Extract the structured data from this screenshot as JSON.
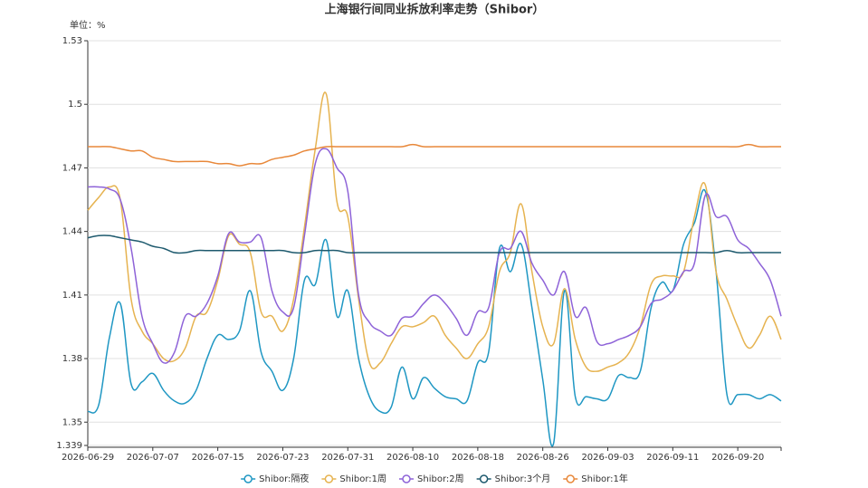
{
  "chart_data": {
    "type": "line",
    "title": "上海银行间同业拆放利率走势（Shibor）",
    "unit_label": "单位：%",
    "categories": [
      "2026-06-29",
      null,
      null,
      null,
      null,
      null,
      "2026-07-07",
      null,
      null,
      null,
      null,
      null,
      "2026-07-15",
      null,
      null,
      null,
      null,
      null,
      "2026-07-23",
      null,
      null,
      null,
      null,
      null,
      "2026-07-31",
      null,
      null,
      null,
      null,
      null,
      "2026-08-10",
      null,
      null,
      null,
      null,
      null,
      "2026-08-18",
      null,
      null,
      null,
      null,
      null,
      "2026-08-26",
      null,
      null,
      null,
      null,
      null,
      "2026-09-03",
      null,
      null,
      null,
      null,
      null,
      "2026-09-11",
      null,
      null,
      null,
      null,
      null,
      "2026-09-20",
      null,
      null,
      null,
      null
    ],
    "ylim": [
      1.339,
      1.53
    ],
    "yticks": [
      1.339,
      1.35,
      1.38,
      1.41,
      1.44,
      1.47,
      1.5,
      1.53
    ],
    "grid": true,
    "legend": "bottom",
    "series": [
      {
        "name": "Shibor:隔夜",
        "color": "#1f97c3",
        "values": [
          1.355,
          1.358,
          1.39,
          1.406,
          1.368,
          1.369,
          1.373,
          1.365,
          1.36,
          1.359,
          1.365,
          1.38,
          1.391,
          1.389,
          1.393,
          1.412,
          1.383,
          1.374,
          1.365,
          1.38,
          1.417,
          1.415,
          1.436,
          1.4,
          1.412,
          1.38,
          1.362,
          1.355,
          1.357,
          1.376,
          1.361,
          1.371,
          1.366,
          1.362,
          1.361,
          1.36,
          1.378,
          1.383,
          1.432,
          1.421,
          1.434,
          1.404,
          1.37,
          1.34,
          1.412,
          1.362,
          1.362,
          1.361,
          1.361,
          1.372,
          1.371,
          1.374,
          1.404,
          1.416,
          1.412,
          1.434,
          1.444,
          1.459,
          1.421,
          1.363,
          1.363,
          1.363,
          1.361,
          1.363,
          1.36
        ]
      },
      {
        "name": "Shibor:1周",
        "color": "#e6b350",
        "values": [
          1.45,
          1.456,
          1.461,
          1.455,
          1.408,
          1.393,
          1.387,
          1.38,
          1.379,
          1.385,
          1.4,
          1.402,
          1.417,
          1.438,
          1.434,
          1.43,
          1.402,
          1.4,
          1.393,
          1.408,
          1.442,
          1.479,
          1.505,
          1.454,
          1.447,
          1.408,
          1.378,
          1.378,
          1.387,
          1.395,
          1.395,
          1.397,
          1.4,
          1.391,
          1.385,
          1.38,
          1.387,
          1.395,
          1.421,
          1.43,
          1.453,
          1.421,
          1.395,
          1.387,
          1.413,
          1.389,
          1.376,
          1.374,
          1.376,
          1.378,
          1.383,
          1.395,
          1.415,
          1.419,
          1.419,
          1.421,
          1.447,
          1.462,
          1.421,
          1.408,
          1.395,
          1.385,
          1.391,
          1.4,
          1.389
        ]
      },
      {
        "name": "Shibor:2周",
        "color": "#8e63d8",
        "values": [
          1.461,
          1.461,
          1.46,
          1.455,
          1.432,
          1.4,
          1.387,
          1.378,
          1.383,
          1.4,
          1.4,
          1.406,
          1.419,
          1.439,
          1.435,
          1.435,
          1.437,
          1.412,
          1.402,
          1.404,
          1.438,
          1.472,
          1.479,
          1.47,
          1.459,
          1.41,
          1.397,
          1.393,
          1.391,
          1.399,
          1.4,
          1.406,
          1.41,
          1.406,
          1.399,
          1.391,
          1.402,
          1.404,
          1.43,
          1.432,
          1.44,
          1.425,
          1.417,
          1.41,
          1.421,
          1.4,
          1.404,
          1.388,
          1.387,
          1.389,
          1.391,
          1.395,
          1.406,
          1.408,
          1.412,
          1.421,
          1.425,
          1.457,
          1.447,
          1.447,
          1.436,
          1.432,
          1.425,
          1.417,
          1.4
        ]
      },
      {
        "name": "Shibor:3个月",
        "color": "#1e5a6e",
        "values": [
          1.437,
          1.438,
          1.438,
          1.437,
          1.436,
          1.435,
          1.433,
          1.432,
          1.43,
          1.43,
          1.431,
          1.431,
          1.431,
          1.431,
          1.431,
          1.431,
          1.431,
          1.431,
          1.431,
          1.43,
          1.43,
          1.431,
          1.431,
          1.431,
          1.43,
          1.43,
          1.43,
          1.43,
          1.43,
          1.43,
          1.43,
          1.43,
          1.43,
          1.43,
          1.43,
          1.43,
          1.43,
          1.43,
          1.43,
          1.43,
          1.43,
          1.43,
          1.43,
          1.43,
          1.43,
          1.43,
          1.43,
          1.43,
          1.43,
          1.43,
          1.43,
          1.43,
          1.43,
          1.43,
          1.43,
          1.43,
          1.43,
          1.43,
          1.43,
          1.431,
          1.43,
          1.43,
          1.43,
          1.43,
          1.43
        ]
      },
      {
        "name": "Shibor:1年",
        "color": "#e8883a",
        "values": [
          1.48,
          1.48,
          1.48,
          1.479,
          1.478,
          1.478,
          1.475,
          1.474,
          1.473,
          1.473,
          1.473,
          1.473,
          1.472,
          1.472,
          1.471,
          1.472,
          1.472,
          1.474,
          1.475,
          1.476,
          1.478,
          1.479,
          1.48,
          1.48,
          1.48,
          1.48,
          1.48,
          1.48,
          1.48,
          1.48,
          1.481,
          1.48,
          1.48,
          1.48,
          1.48,
          1.48,
          1.48,
          1.48,
          1.48,
          1.48,
          1.48,
          1.48,
          1.48,
          1.48,
          1.48,
          1.48,
          1.48,
          1.48,
          1.48,
          1.48,
          1.48,
          1.48,
          1.48,
          1.48,
          1.48,
          1.48,
          1.48,
          1.48,
          1.48,
          1.48,
          1.48,
          1.481,
          1.48,
          1.48,
          1.48
        ]
      }
    ]
  }
}
